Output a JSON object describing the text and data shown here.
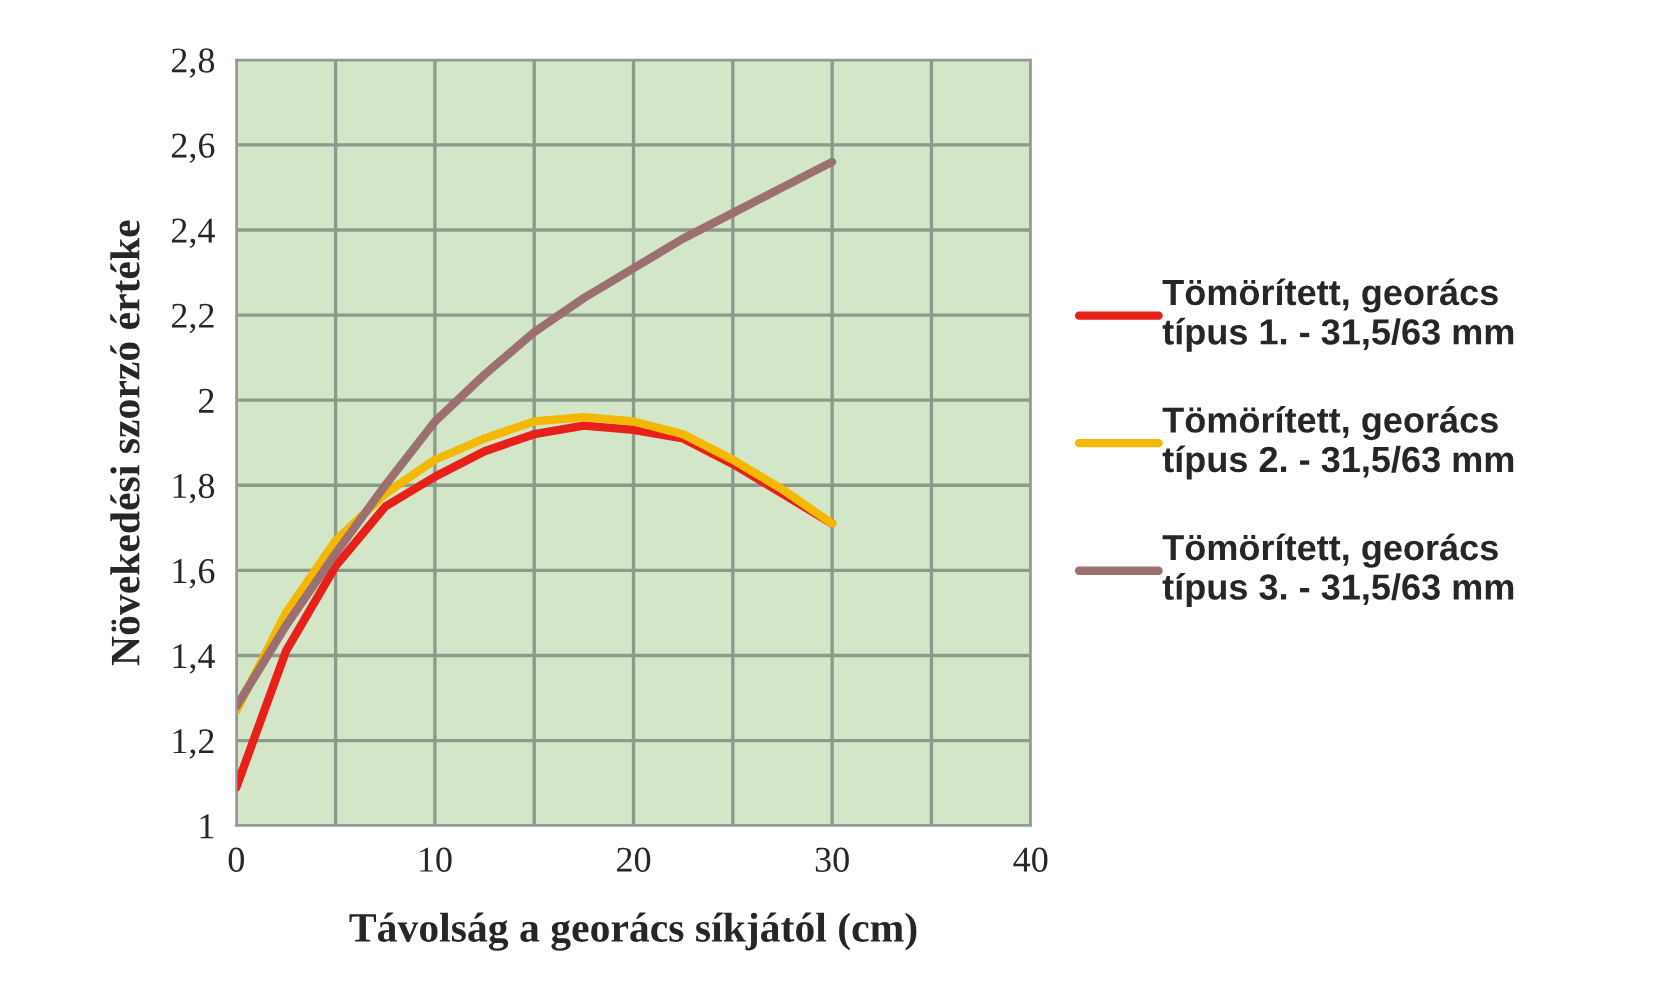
{
  "chart_data": {
    "type": "line",
    "xlabel": "Távolság a georács síkjától (cm)",
    "ylabel": "Növekedési szorzó értéke",
    "x": [
      0,
      2.5,
      5,
      7.5,
      10,
      12.5,
      15,
      17.5,
      20,
      22.5,
      25,
      27.5,
      30
    ],
    "series": [
      {
        "name": "Tömörített, georács\ntípus 1. - 31,5/63 mm",
        "color": "#e8201a",
        "values": [
          1.09,
          1.41,
          1.61,
          1.75,
          1.82,
          1.88,
          1.92,
          1.94,
          1.93,
          1.91,
          1.85,
          1.78,
          1.71
        ]
      },
      {
        "name": "Tömörített, georács\ntípus 2. - 31,5/63 mm",
        "color": "#f5b800",
        "values": [
          1.27,
          1.5,
          1.67,
          1.78,
          1.86,
          1.91,
          1.95,
          1.96,
          1.95,
          1.92,
          1.86,
          1.79,
          1.71
        ]
      },
      {
        "name": "Tömörített, georács\ntípus 3. - 31,5/63 mm",
        "color": "#9c7070",
        "values": [
          1.28,
          1.47,
          1.64,
          1.8,
          1.95,
          2.06,
          2.16,
          2.24,
          2.31,
          2.38,
          2.44,
          2.5,
          2.56
        ]
      }
    ],
    "xlim": [
      0,
      40
    ],
    "xticks": [
      0,
      {
        "value": 5,
        "label": null
      },
      10,
      {
        "value": 15,
        "label": null
      },
      20,
      {
        "value": 25,
        "label": null
      },
      30,
      {
        "value": 35,
        "label": null
      },
      40
    ],
    "ylim": [
      1,
      2.8
    ],
    "yticks": [
      {
        "value": 1,
        "label": "1"
      },
      {
        "value": 1.2,
        "label": "1,2"
      },
      {
        "value": 1.4,
        "label": "1,4"
      },
      {
        "value": 1.6,
        "label": "1,6"
      },
      {
        "value": 1.8,
        "label": "1,8"
      },
      {
        "value": 2,
        "label": "2"
      },
      {
        "value": 2.2,
        "label": "2,2"
      },
      {
        "value": 2.4,
        "label": "2,4"
      },
      {
        "value": 2.6,
        "label": "2,6"
      },
      {
        "value": 2.8,
        "label": "2,8"
      }
    ],
    "grid": true,
    "legend": "right",
    "marker": "none",
    "line_style": "solid"
  }
}
